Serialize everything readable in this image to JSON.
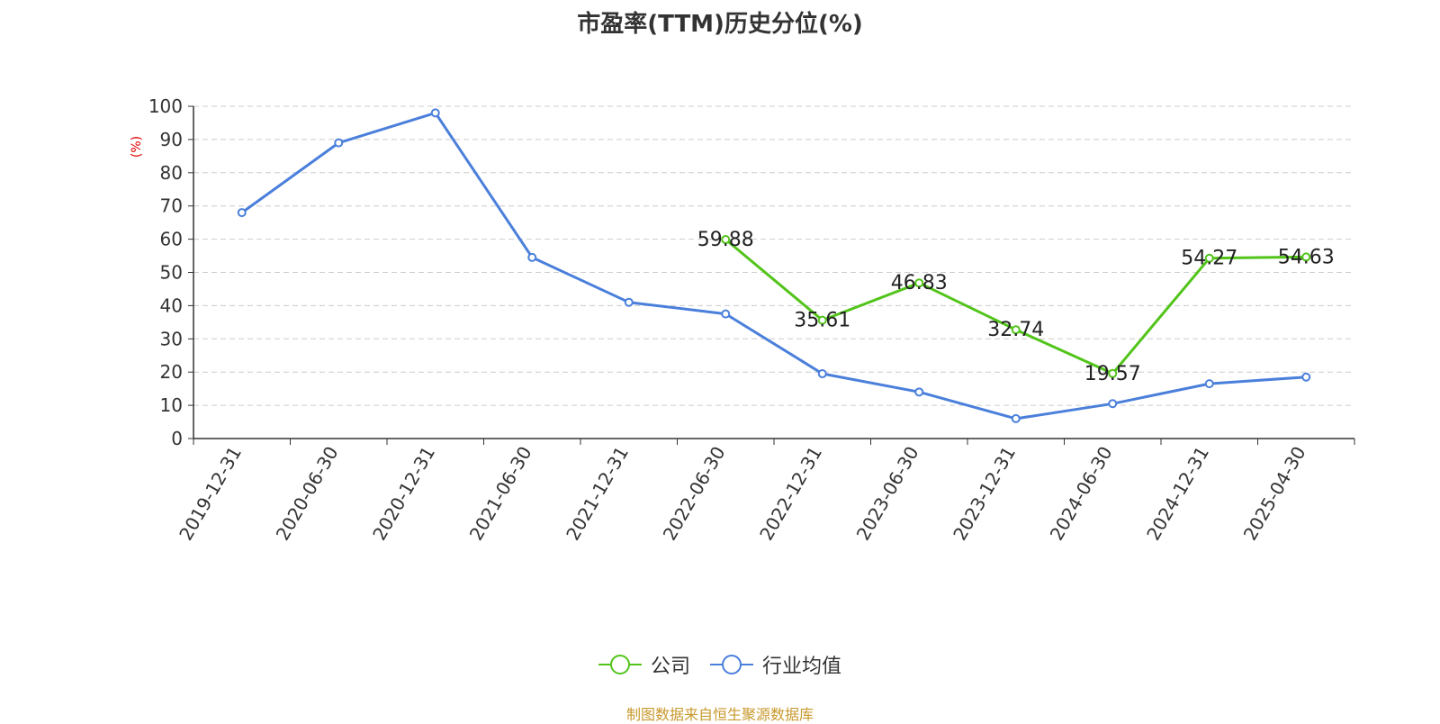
{
  "chart_data": {
    "type": "line",
    "title": "市盈率(TTM)历史分位(%)",
    "ylabel": "(%)",
    "xlabel": "",
    "ylim": [
      0,
      100
    ],
    "yticks": [
      0,
      10,
      20,
      30,
      40,
      50,
      60,
      70,
      80,
      90,
      100
    ],
    "grid": true,
    "legend_position": "bottom-center",
    "categories": [
      "2019-12-31",
      "2020-06-30",
      "2020-12-31",
      "2021-06-30",
      "2021-12-31",
      "2022-06-30",
      "2022-12-31",
      "2023-06-30",
      "2023-12-31",
      "2024-06-30",
      "2024-12-31",
      "2025-04-30"
    ],
    "series": [
      {
        "name": "公司",
        "color": "#52c41a",
        "show_labels": true,
        "values": [
          null,
          null,
          null,
          null,
          null,
          59.88,
          35.61,
          46.83,
          32.74,
          19.57,
          54.27,
          54.63
        ],
        "labels": [
          "",
          "",
          "",
          "",
          "",
          "59.88",
          "35.61",
          "46.83",
          "32.74",
          "19.57",
          "54.27",
          "54.63"
        ]
      },
      {
        "name": "行业均值",
        "color": "#4a7fdb",
        "show_labels": false,
        "values": [
          68,
          89,
          98,
          54.5,
          41,
          37.5,
          19.5,
          14,
          6,
          10.5,
          16.5,
          18.5
        ]
      }
    ]
  },
  "source_text": "制图数据来自恒生聚源数据库"
}
